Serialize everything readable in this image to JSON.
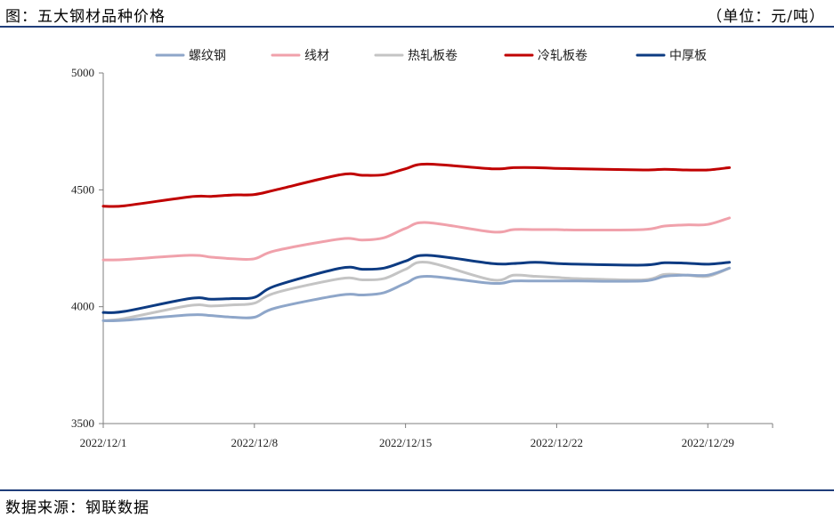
{
  "header": {
    "title": "图：五大钢材品种价格",
    "unit": "（单位：元/吨）"
  },
  "footer": {
    "source": "数据来源：钢联数据"
  },
  "chart_data": {
    "type": "line",
    "title": "五大钢材品种价格",
    "xlabel": "",
    "ylabel": "",
    "ylim": [
      3500,
      5000
    ],
    "yticks": [
      3500,
      4000,
      4500,
      5000
    ],
    "xlim": [
      "2022-12-01",
      "2023-01-01"
    ],
    "xticks": [
      {
        "label": "2022/12/1",
        "date": "2022-12-01"
      },
      {
        "label": "2022/12/8",
        "date": "2022-12-08"
      },
      {
        "label": "2022/12/15",
        "date": "2022-12-15"
      },
      {
        "label": "2022/12/22",
        "date": "2022-12-22"
      },
      {
        "label": "2022/12/29",
        "date": "2022-12-29"
      }
    ],
    "legend_position": "top",
    "grid": false,
    "dates": [
      "2022-12-01",
      "2022-12-02",
      "2022-12-05",
      "2022-12-06",
      "2022-12-07",
      "2022-12-08",
      "2022-12-09",
      "2022-12-12",
      "2022-12-13",
      "2022-12-14",
      "2022-12-15",
      "2022-12-16",
      "2022-12-19",
      "2022-12-20",
      "2022-12-21",
      "2022-12-22",
      "2022-12-23",
      "2022-12-26",
      "2022-12-27",
      "2022-12-28",
      "2022-12-29",
      "2022-12-30"
    ],
    "series": [
      {
        "name": "螺纹钢",
        "color": "#8ea6c9",
        "values": [
          3940,
          3942,
          3965,
          3962,
          3955,
          3955,
          3995,
          4050,
          4050,
          4060,
          4100,
          4130,
          4100,
          4110,
          4110,
          4110,
          4110,
          4110,
          4130,
          4135,
          4135,
          4165
        ]
      },
      {
        "name": "线材",
        "color": "#f0a1ab",
        "values": [
          4200,
          4202,
          4220,
          4212,
          4205,
          4205,
          4240,
          4290,
          4285,
          4295,
          4335,
          4360,
          4320,
          4330,
          4330,
          4330,
          4328,
          4330,
          4345,
          4350,
          4352,
          4380
        ]
      },
      {
        "name": "热轧板卷",
        "color": "#c4c4c4",
        "values": [
          3940,
          3950,
          4005,
          4003,
          4008,
          4015,
          4060,
          4120,
          4115,
          4120,
          4160,
          4190,
          4115,
          4135,
          4130,
          4125,
          4120,
          4115,
          4138,
          4135,
          4130,
          4165
        ]
      },
      {
        "name": "冷轧板卷",
        "color": "#c00000",
        "values": [
          4430,
          4432,
          4470,
          4472,
          4478,
          4480,
          4500,
          4565,
          4562,
          4565,
          4590,
          4610,
          4590,
          4595,
          4595,
          4592,
          4590,
          4585,
          4588,
          4585,
          4585,
          4595
        ]
      },
      {
        "name": "中厚板",
        "color": "#0d3b82",
        "values": [
          3975,
          3980,
          4035,
          4032,
          4035,
          4040,
          4090,
          4165,
          4160,
          4165,
          4195,
          4220,
          4185,
          4185,
          4190,
          4185,
          4182,
          4178,
          4188,
          4186,
          4182,
          4190
        ]
      }
    ]
  }
}
